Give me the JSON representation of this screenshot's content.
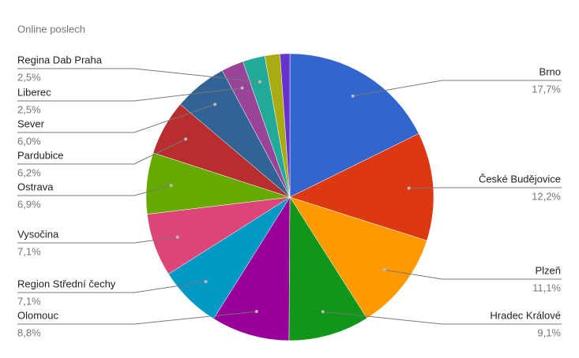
{
  "chart_data": {
    "type": "pie",
    "title": "Online poslech",
    "categories": [
      "Brno",
      "České Budějovice",
      "Plzeň",
      "Hradec Králové",
      "Olomouc",
      "Region Střední čechy",
      "Vysočina",
      "Ostrava",
      "Pardubice",
      "Sever",
      "Liberec",
      "Regina Dab Praha",
      null,
      null
    ],
    "values": [
      17.7,
      12.2,
      11.1,
      9.1,
      8.8,
      7.1,
      7.1,
      6.9,
      6.2,
      6.0,
      2.5,
      2.5,
      1.7,
      1.1
    ],
    "value_labels": [
      "17,7%",
      "12,2%",
      "11,1%",
      "9,1%",
      "8,8%",
      "7,1%",
      "7,1%",
      "6,9%",
      "6,2%",
      "6,0%",
      "2,5%",
      "2,5%",
      null,
      null
    ],
    "colors": [
      "#3366cc",
      "#dc3912",
      "#ff9900",
      "#109618",
      "#990099",
      "#0099c6",
      "#dd4477",
      "#66aa00",
      "#b82e2e",
      "#316395",
      "#994499",
      "#22aa99",
      "#aaaa11",
      "#6633cc"
    ]
  }
}
